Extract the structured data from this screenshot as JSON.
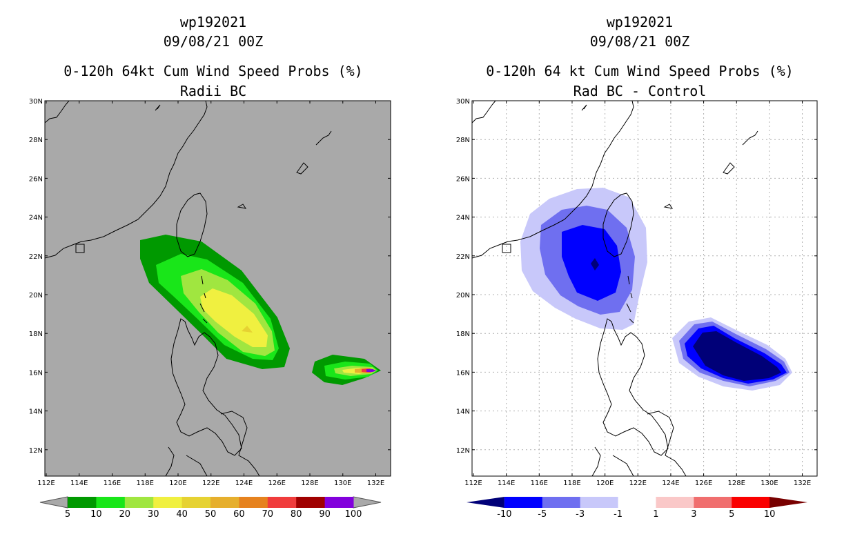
{
  "left": {
    "storm_id": "wp192021",
    "datetime": "09/08/21 00Z",
    "title": "0-120h 64kt Cum Wind Speed Probs (%)",
    "subtitle": "Radii BC",
    "background_color": "#a9a9a9",
    "lat_labels": [
      "30N",
      "28N",
      "26N",
      "24N",
      "22N",
      "20N",
      "18N",
      "16N",
      "14N",
      "12N"
    ],
    "lon_labels": [
      "112E",
      "114E",
      "116E",
      "118E",
      "120E",
      "122E",
      "124E",
      "126E",
      "128E",
      "130E",
      "132E"
    ],
    "colorbar": {
      "colors": [
        "#009900",
        "#19e619",
        "#a0e640",
        "#f0f040",
        "#e6d232",
        "#e6af2d",
        "#e6821e",
        "#f03c3c",
        "#a00000",
        "#8200dc"
      ],
      "ticks": [
        "5",
        "10",
        "20",
        "30",
        "40",
        "50",
        "60",
        "70",
        "80",
        "90",
        "100"
      ]
    }
  },
  "right": {
    "storm_id": "wp192021",
    "datetime": "09/08/21 00Z",
    "title": "0-120h 64 kt Cum Wind Speed Probs (%)",
    "subtitle": "Rad BC - Control",
    "background_color": "#ffffff",
    "lat_labels": [
      "30N",
      "28N",
      "26N",
      "24N",
      "22N",
      "20N",
      "18N",
      "16N",
      "14N",
      "12N"
    ],
    "lon_labels": [
      "112E",
      "114E",
      "116E",
      "118E",
      "120E",
      "122E",
      "124E",
      "126E",
      "128E",
      "130E",
      "132E"
    ],
    "colorbar": {
      "colors": [
        "#000078",
        "#0000ff",
        "#6f6ff0",
        "#c8c8fa",
        "#ffffff",
        "#fac8c8",
        "#f06e6e",
        "#fa0000",
        "#780000"
      ],
      "ticks": [
        "-10",
        "-5",
        "-3",
        "-1",
        "1",
        "3",
        "5",
        "10"
      ]
    }
  }
}
